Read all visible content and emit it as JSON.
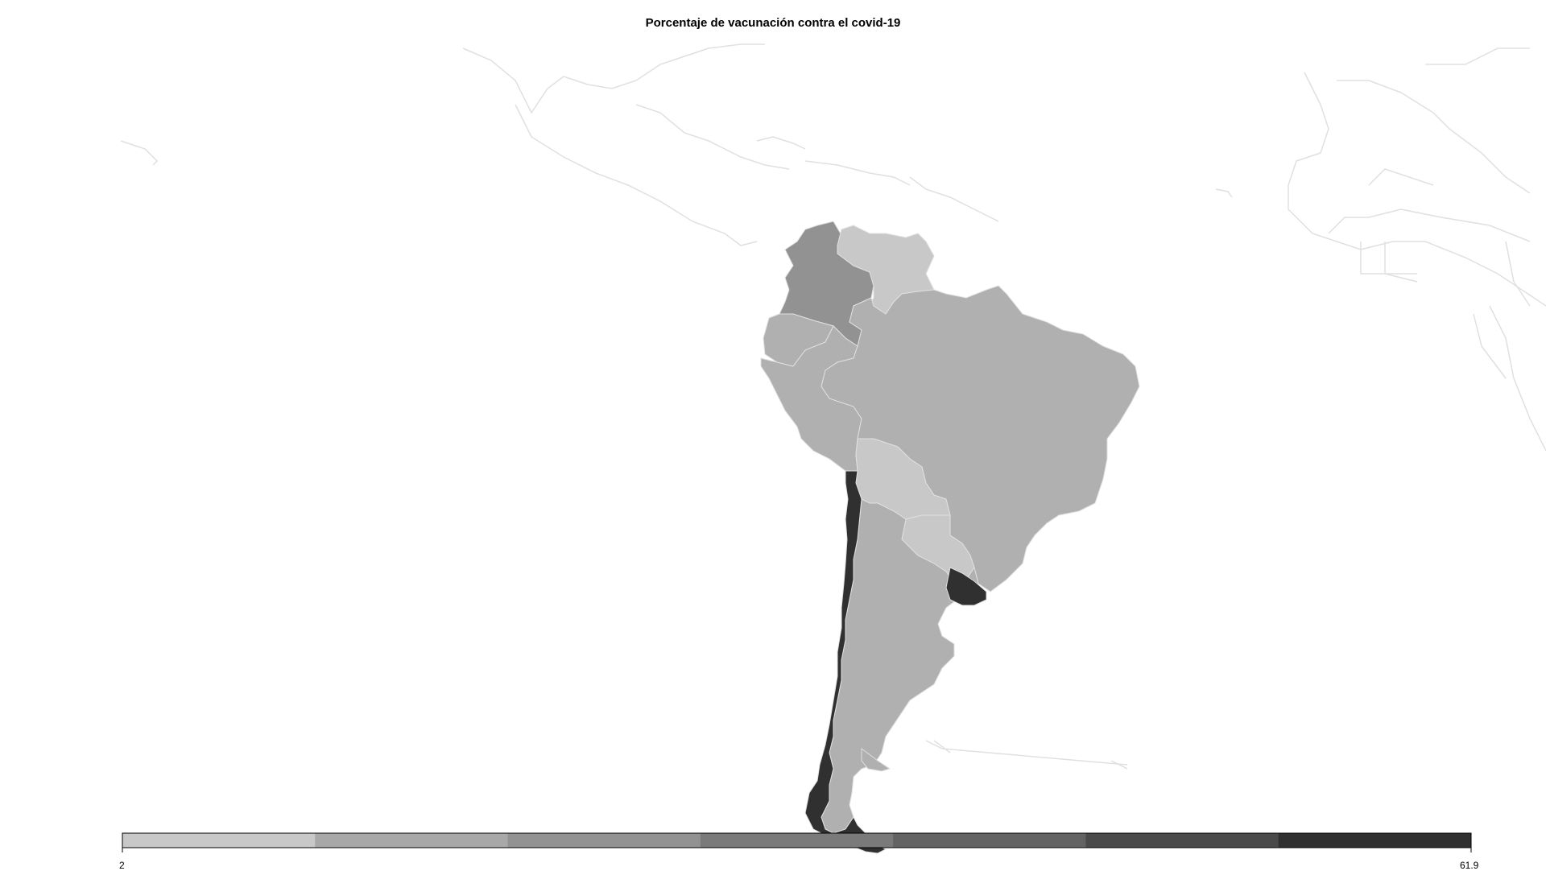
{
  "map": {
    "title": "Porcentaje de vacunación contra el covid-19",
    "legend": {
      "min_label": "2",
      "max_label": "61.9",
      "colors": [
        "#c8c8c8",
        "#a8a8a8",
        "#929292",
        "#7a7a7a",
        "#636363",
        "#4a4a4a",
        "#303030"
      ]
    },
    "countries": [
      {
        "name": "Colombia",
        "color": "#929292"
      },
      {
        "name": "Venezuela",
        "color": "#c8c8c8"
      },
      {
        "name": "Ecuador",
        "color": "#b0b0b0"
      },
      {
        "name": "Peru",
        "color": "#b0b0b0"
      },
      {
        "name": "Brazil",
        "color": "#b0b0b0"
      },
      {
        "name": "Bolivia",
        "color": "#c8c8c8"
      },
      {
        "name": "Paraguay",
        "color": "#c8c8c8"
      },
      {
        "name": "Chile",
        "color": "#303030"
      },
      {
        "name": "Argentina",
        "color": "#b0b0b0"
      },
      {
        "name": "Uruguay",
        "color": "#303030"
      }
    ],
    "border_color": "#e0e0e0"
  }
}
